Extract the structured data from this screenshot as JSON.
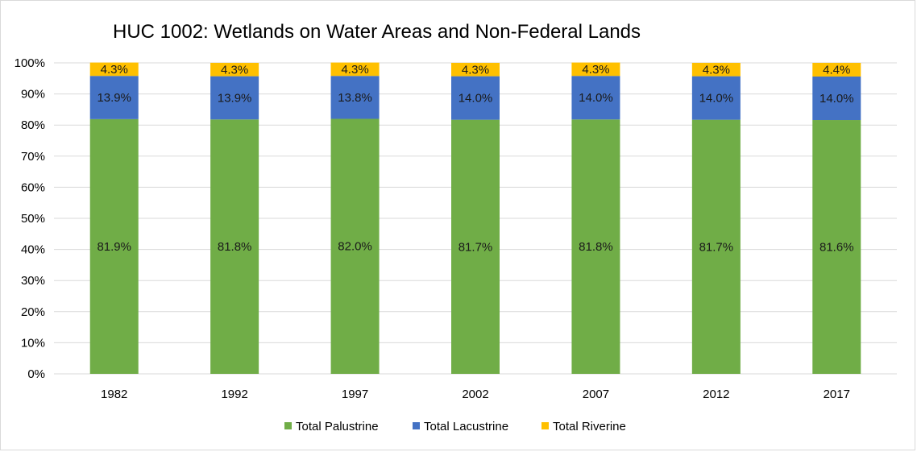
{
  "chart_data": {
    "type": "bar",
    "stacked": true,
    "title": "HUC 1002: Wetlands on Water Areas and Non-Federal Lands",
    "xlabel": "",
    "ylabel": "",
    "categories": [
      "1982",
      "1992",
      "1997",
      "2002",
      "2007",
      "2012",
      "2017"
    ],
    "series": [
      {
        "name": "Total Palustrine",
        "color": "#70ad47",
        "values": [
          81.9,
          81.8,
          82.0,
          81.7,
          81.8,
          81.7,
          81.6
        ],
        "labels": [
          "81.9%",
          "81.8%",
          "82.0%",
          "81.7%",
          "81.8%",
          "81.7%",
          "81.6%"
        ]
      },
      {
        "name": "Total Lacustrine",
        "color": "#4472c4",
        "values": [
          13.9,
          13.9,
          13.8,
          14.0,
          14.0,
          14.0,
          14.0
        ],
        "labels": [
          "13.9%",
          "13.9%",
          "13.8%",
          "14.0%",
          "14.0%",
          "14.0%",
          "14.0%"
        ]
      },
      {
        "name": "Total Riverine",
        "color": "#ffc000",
        "values": [
          4.3,
          4.3,
          4.3,
          4.3,
          4.3,
          4.3,
          4.4
        ],
        "labels": [
          "4.3%",
          "4.3%",
          "4.3%",
          "4.3%",
          "4.3%",
          "4.3%",
          "4.4%"
        ]
      }
    ],
    "ylim": [
      0,
      100
    ],
    "yticks": [
      "0%",
      "10%",
      "20%",
      "30%",
      "40%",
      "50%",
      "60%",
      "70%",
      "80%",
      "90%",
      "100%"
    ],
    "grid": true,
    "legend": "bottom",
    "gridline_color": "#d9d9d9"
  }
}
